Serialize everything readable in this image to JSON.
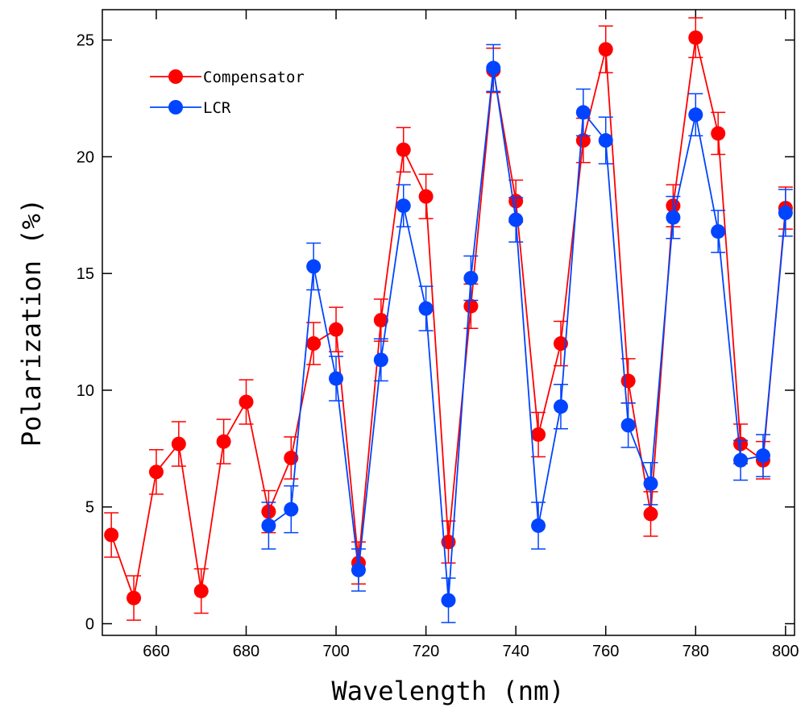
{
  "chart_data": {
    "type": "scatter",
    "title": "",
    "xlabel": "Wavelength (nm)",
    "ylabel": "Polarization (%)",
    "xlim": [
      648,
      802
    ],
    "ylim": [
      -0.5,
      26.3
    ],
    "xticks": [
      660,
      680,
      700,
      720,
      740,
      760,
      780,
      800
    ],
    "yticks": [
      0,
      5,
      10,
      15,
      20,
      25
    ],
    "grid": false,
    "legend_position": "top-left",
    "series": [
      {
        "name": "Compensator",
        "color": "#ff0000",
        "x": [
          650,
          655,
          660,
          665,
          670,
          675,
          680,
          685,
          690,
          695,
          700,
          705,
          710,
          715,
          720,
          725,
          730,
          735,
          740,
          745,
          750,
          755,
          760,
          765,
          770,
          775,
          780,
          785,
          790,
          795,
          800
        ],
        "y": [
          3.8,
          1.1,
          6.5,
          7.7,
          1.4,
          7.8,
          9.5,
          4.8,
          7.1,
          12.0,
          12.6,
          2.6,
          13.0,
          20.3,
          18.3,
          3.5,
          13.6,
          23.7,
          18.1,
          8.1,
          12.0,
          20.7,
          24.6,
          10.4,
          4.7,
          17.9,
          25.1,
          21.0,
          7.7,
          7.0,
          17.8
        ],
        "err": [
          0.95,
          0.95,
          0.95,
          0.95,
          0.95,
          0.95,
          0.95,
          0.9,
          0.9,
          0.9,
          0.95,
          0.9,
          0.9,
          0.95,
          0.95,
          0.9,
          0.95,
          0.95,
          0.9,
          0.95,
          0.95,
          0.95,
          1.0,
          0.95,
          0.95,
          0.9,
          0.85,
          0.9,
          0.85,
          0.8,
          0.9
        ]
      },
      {
        "name": "LCR",
        "color": "#0044ff",
        "x": [
          685,
          690,
          695,
          700,
          705,
          710,
          715,
          720,
          725,
          730,
          735,
          740,
          745,
          750,
          755,
          760,
          765,
          770,
          775,
          780,
          785,
          790,
          795,
          800
        ],
        "y": [
          4.2,
          4.9,
          15.3,
          10.5,
          2.3,
          11.3,
          17.9,
          13.5,
          1.0,
          14.8,
          23.8,
          17.3,
          4.2,
          9.3,
          21.9,
          20.7,
          8.5,
          6.0,
          17.4,
          21.8,
          16.8,
          7.0,
          7.2,
          17.6
        ],
        "err": [
          1.0,
          1.0,
          1.0,
          0.95,
          0.9,
          0.9,
          0.9,
          0.95,
          0.95,
          0.95,
          1.0,
          0.95,
          1.0,
          0.95,
          1.0,
          1.0,
          0.95,
          0.9,
          0.9,
          0.9,
          0.9,
          0.85,
          0.9,
          1.0
        ]
      }
    ]
  }
}
